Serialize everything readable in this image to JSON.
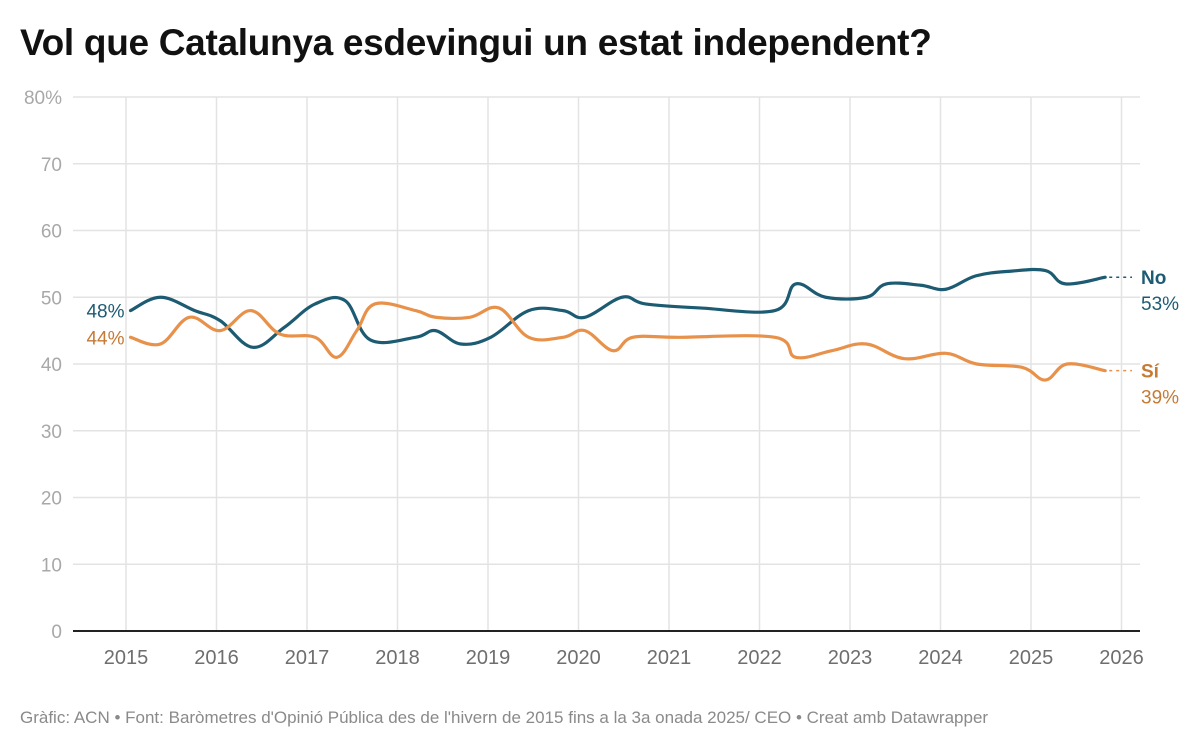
{
  "title": "Vol que Catalunya esdevingui un estat independent?",
  "footer": "Gràfic: ACN • Font: Baròmetres d'Opinió Pública des de l'hivern de 2015 fins a la 3a onada 2025/ CEO • Creat amb Datawrapper",
  "chart_data": {
    "type": "line",
    "title": "Vol que Catalunya esdevingui un estat independent?",
    "xlabel": "",
    "ylabel": "",
    "xlim": [
      2014.4,
      2026.2
    ],
    "ylim": [
      0,
      80
    ],
    "x_ticks": [
      2015,
      2016,
      2017,
      2018,
      2019,
      2020,
      2021,
      2022,
      2023,
      2024,
      2025,
      2026
    ],
    "x_tick_labels": [
      "2015",
      "2016",
      "2017",
      "2018",
      "2019",
      "2020",
      "2021",
      "2022",
      "2023",
      "2024",
      "2025",
      "2026"
    ],
    "y_ticks": [
      0,
      10,
      20,
      30,
      40,
      50,
      60,
      70,
      80
    ],
    "y_tick_labels": [
      "0",
      "10",
      "20",
      "30",
      "40",
      "50",
      "60",
      "70",
      "80%"
    ],
    "grid": true,
    "legend": "inline-right",
    "series": [
      {
        "name": "No",
        "color": "#1d5b73",
        "start_label": "48%",
        "end_label": "53%",
        "x": [
          2015.05,
          2015.38,
          2015.76,
          2016.04,
          2016.4,
          2016.75,
          2017.09,
          2017.42,
          2017.7,
          2018.2,
          2018.42,
          2018.7,
          2019.03,
          2019.45,
          2019.83,
          2020.07,
          2020.48,
          2020.74,
          2021.34,
          2022.17,
          2022.4,
          2022.73,
          2023.18,
          2023.4,
          2023.78,
          2024.06,
          2024.39,
          2024.77,
          2025.16,
          2025.38,
          2025.82
        ],
        "values": [
          48,
          50,
          48,
          46.5,
          42.5,
          45.5,
          49,
          49.5,
          43.6,
          44,
          45,
          43,
          44,
          48,
          48,
          47,
          50,
          49,
          48.4,
          48,
          52,
          50,
          50,
          52,
          51.8,
          51.2,
          53.2,
          53.9,
          54,
          52,
          53
        ]
      },
      {
        "name": "Sí",
        "color": "#e8914a",
        "start_label": "44%",
        "end_label": "39%",
        "x": [
          2015.05,
          2015.38,
          2015.7,
          2016.04,
          2016.38,
          2016.7,
          2017.09,
          2017.33,
          2017.55,
          2017.75,
          2018.2,
          2018.42,
          2018.8,
          2019.12,
          2019.45,
          2019.83,
          2020.07,
          2020.38,
          2020.6,
          2021.1,
          2022.17,
          2022.4,
          2022.8,
          2023.18,
          2023.6,
          2024.06,
          2024.4,
          2024.9,
          2025.16,
          2025.4,
          2025.82
        ],
        "values": [
          44,
          43,
          47,
          45,
          48,
          44.5,
          44,
          41,
          45,
          49,
          48,
          47,
          47,
          48.4,
          44,
          44,
          45,
          42,
          44,
          44,
          44,
          41,
          42,
          43,
          40.8,
          41.6,
          40,
          39.5,
          37.6,
          40,
          39
        ]
      }
    ]
  }
}
